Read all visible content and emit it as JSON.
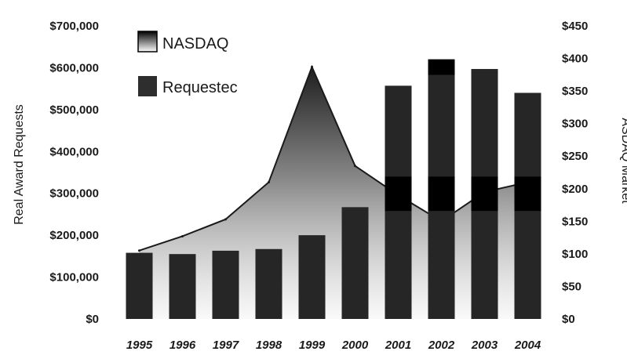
{
  "chart_data": {
    "type": "bar",
    "categories": [
      "1995",
      "1996",
      "1997",
      "1998",
      "1999",
      "2000",
      "2001",
      "2002",
      "2003",
      "2004"
    ],
    "series": [
      {
        "name": "Requestec",
        "type": "bar",
        "axis": "left",
        "values": [
          158000,
          155000,
          163000,
          167000,
          200000,
          267000,
          557000,
          620000,
          597000,
          540000
        ]
      },
      {
        "name": "NASDAQ",
        "type": "area",
        "axis": "right",
        "values": [
          105,
          127,
          153,
          210,
          387,
          235,
          190,
          150,
          195,
          210
        ]
      }
    ],
    "ylabel": "Real Award Requests",
    "y2label": "ASDAQ Market",
    "ylim": [
      0,
      700000
    ],
    "y2lim": [
      0,
      450
    ],
    "yticks": [
      "$700,000",
      "$600,000",
      "$500,000",
      "$400,000",
      "$300,000",
      "$200,000",
      "$100,000",
      "$0"
    ],
    "y2ticks": [
      "$450",
      "$400",
      "$350",
      "$300",
      "$250",
      "$200",
      "$150",
      "$100",
      "$50",
      "$0"
    ],
    "xticks": [
      "1995",
      "1996",
      "1997",
      "1998",
      "1999",
      "2000",
      "2001",
      "2002",
      "2003",
      "2004"
    ],
    "legend": [
      "NASDAQ",
      "Requestec"
    ],
    "legend_position": "top-left",
    "grid": false,
    "colors": {
      "bar": "#262626",
      "area_top": "#2a2a2a",
      "area_bottom": "#f2f2f2",
      "band": "#000000"
    }
  }
}
